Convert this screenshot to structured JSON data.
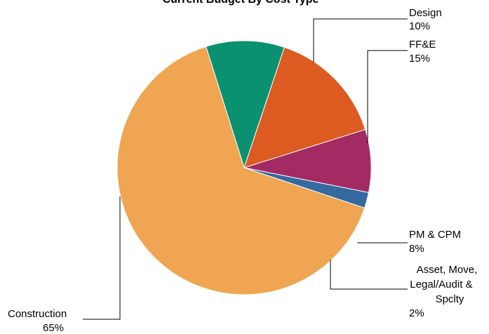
{
  "chart_data": {
    "type": "pie",
    "title": "Current Budget By Cost Type",
    "slices": [
      {
        "label": "Design",
        "value": 10,
        "value_label": "10%",
        "color": "#0a9170"
      },
      {
        "label": "FF&E",
        "value": 15,
        "value_label": "15%",
        "color": "#dd5a20"
      },
      {
        "label": "PM & CPM",
        "value": 8,
        "value_label": "8%",
        "color": "#a32a62"
      },
      {
        "label": "Asset, Move, Legal/Audit & Spclty",
        "value": 2,
        "value_label": "2%",
        "color": "#356aa0"
      },
      {
        "label": "Construction",
        "value": 65,
        "value_label": "65%",
        "color": "#efa551"
      }
    ],
    "legend": "none"
  }
}
